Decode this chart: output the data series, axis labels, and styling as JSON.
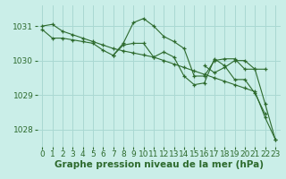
{
  "background_color": "#caeee8",
  "grid_color": "#aad8d2",
  "line_color": "#2d6a2d",
  "tick_color": "#2d6a2d",
  "xlabel": "Graphe pression niveau de la mer (hPa)",
  "xlabel_fontsize": 7.5,
  "tick_fontsize": 6.5,
  "xlim": [
    -0.5,
    23.5
  ],
  "ylim": [
    1027.5,
    1031.6
  ],
  "yticks": [
    1028,
    1029,
    1030,
    1031
  ],
  "xticks": [
    0,
    1,
    2,
    3,
    4,
    5,
    6,
    7,
    8,
    9,
    10,
    11,
    12,
    13,
    14,
    15,
    16,
    17,
    18,
    19,
    20,
    21,
    22,
    23
  ],
  "series": [
    [
      1031.0,
      1031.05,
      1030.85,
      1030.75,
      1030.65,
      1030.55,
      1030.45,
      1030.35,
      1030.28,
      1030.22,
      1030.16,
      1030.1,
      1030.0,
      1029.9,
      1029.8,
      1029.7,
      1029.6,
      1029.5,
      1029.4,
      1029.3,
      1029.2,
      1029.1,
      1028.35,
      1027.72
    ],
    [
      1030.9,
      1030.65,
      1030.65,
      1030.6,
      1030.55,
      1030.5,
      1030.3,
      1030.15,
      1030.5,
      1031.1,
      1031.22,
      1031.0,
      1030.7,
      1030.55,
      1030.35,
      1029.55,
      1029.55,
      1030.0,
      1030.05,
      1030.05,
      1029.75,
      1029.75,
      1029.75,
      null
    ],
    [
      null,
      null,
      null,
      null,
      null,
      null,
      null,
      1030.15,
      1030.45,
      1030.5,
      1030.5,
      1030.1,
      1030.25,
      1030.1,
      1029.55,
      1029.3,
      1029.35,
      1030.05,
      1029.85,
      1029.45,
      1029.45,
      1029.05,
      1028.45,
      null
    ],
    [
      null,
      null,
      null,
      null,
      null,
      null,
      null,
      null,
      null,
      null,
      null,
      null,
      null,
      null,
      null,
      null,
      1029.85,
      1029.65,
      1029.8,
      1030.0,
      1030.0,
      1029.75,
      1028.75,
      1027.72
    ]
  ]
}
